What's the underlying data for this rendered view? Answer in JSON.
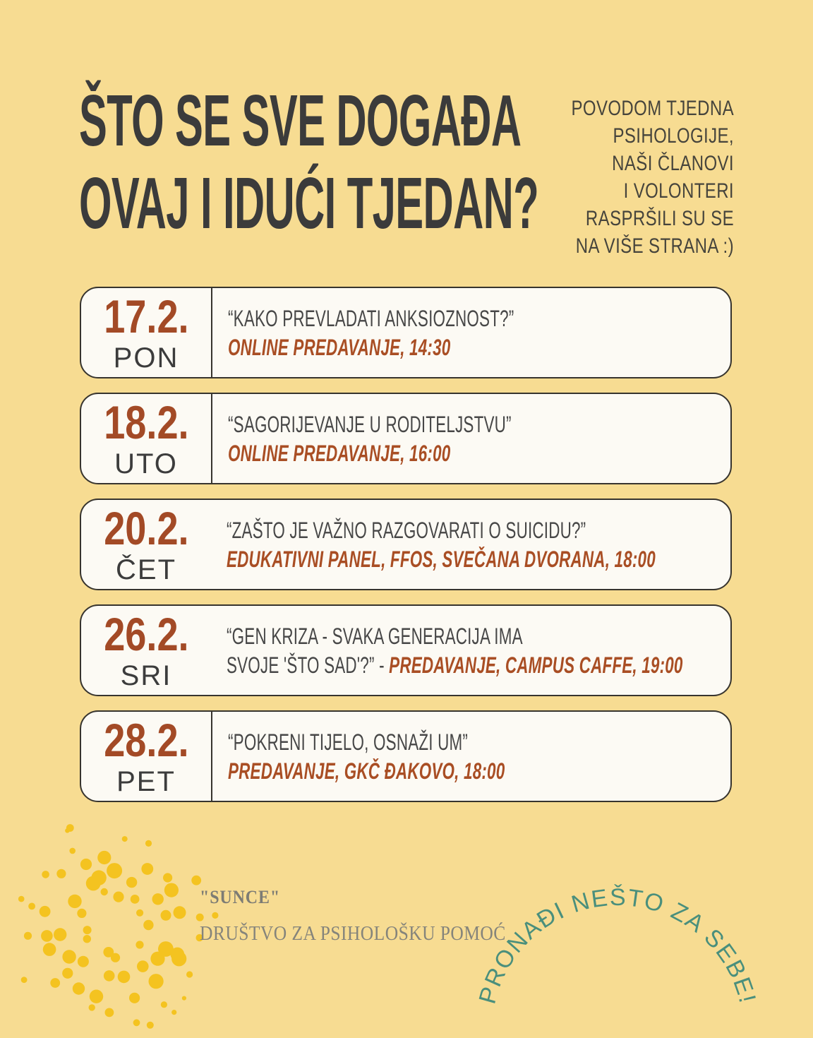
{
  "colors": {
    "background": "#F7DC92",
    "card_background": "#FCFAF4",
    "card_border": "#37342E",
    "ink_dark": "#3B3B3B",
    "rust_date": "#A34A26",
    "rust_meta": "#A94E24",
    "teal_arc": "#4A8F7C",
    "sun_gold": "#F4C320",
    "serif_gray": "#85847B"
  },
  "header": {
    "title_line1": "ŠTO SE SVE DOGAĐA",
    "title_line2": "OVAJ I IDUĆI TJEDAN?",
    "intro": "POVODOM TJEDNA\nPSIHOLOGIJE,\nNAŠI ČLANOVI\nI VOLONTERI\nRASPRŠILI SU SE\nNA VIŠE STRANA :)"
  },
  "events": [
    {
      "date": "17.2.",
      "day": "PON",
      "title": "“KAKO PREVLADATI ANKSIOZNOST?”",
      "line2_prefix": "",
      "meta": "ONLINE PREDAVANJE, 14:30"
    },
    {
      "date": "18.2.",
      "day": "UTO",
      "title": "“SAGORIJEVANJE U RODITELJSTVU”",
      "line2_prefix": "",
      "meta": "ONLINE PREDAVANJE, 16:00"
    },
    {
      "date": "20.2.",
      "day": "ČET",
      "title": "“ZAŠTO JE VAŽNO RAZGOVARATI O SUICIDU?”",
      "line2_prefix": "",
      "meta": "EDUKATIVNI PANEL, FFOS, SVEČANA DVORANA, 18:00"
    },
    {
      "date": "26.2.",
      "day": "SRI",
      "title": "“GEN KRIZA - SVAKA GENERACIJA IMA",
      "line2_prefix": "SVOJE 'ŠTO SAD'?” - ",
      "meta": "PREDAVANJE, CAMPUS CAFFE, 19:00"
    },
    {
      "date": "28.2.",
      "day": "PET",
      "title": "“POKRENI TIJELO, OSNAŽI UM”",
      "line2_prefix": "",
      "meta": "PREDAVANJE, GKČ ĐAKOVO, 18:00"
    }
  ],
  "footer": {
    "org_name": "\"SUNCE\"",
    "org_desc": "DRUŠTVO ZA PSIHOLOŠKU POMOĆ",
    "arc_text": "PRONAĐI NEŠTO ZA SEBE!",
    "logo_icon": "sun-dots-icon"
  }
}
